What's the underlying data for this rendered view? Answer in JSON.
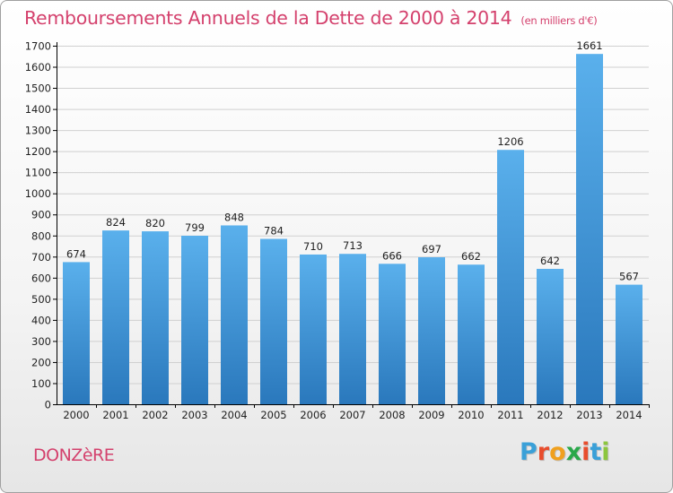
{
  "header": {
    "title": "Remboursements Annuels de la Dette de 2000 à 2014",
    "subtitle": "(en milliers d'€)"
  },
  "footer": {
    "commune": "DONZèRE"
  },
  "logo": {
    "text": "Proxiti",
    "letter_colors": [
      "#3aa0d8",
      "#e84d2d",
      "#f0a01e",
      "#2aa84a",
      "#e84d2d",
      "#3aa0d8",
      "#8cc63e"
    ]
  },
  "colors": {
    "bar_top": "#5ab0ec",
    "bar_bottom": "#2a78bc",
    "grid": "#d0d0d0",
    "accent": "#d4416d"
  },
  "chart_data": {
    "type": "bar",
    "title": "Remboursements Annuels de la Dette de 2000 à 2014",
    "subtitle": "(en milliers d'€)",
    "xlabel": "",
    "ylabel": "",
    "categories": [
      "2000",
      "2001",
      "2002",
      "2003",
      "2004",
      "2005",
      "2006",
      "2007",
      "2008",
      "2009",
      "2010",
      "2011",
      "2012",
      "2013",
      "2014"
    ],
    "values": [
      674,
      824,
      820,
      799,
      848,
      784,
      710,
      713,
      666,
      697,
      662,
      1206,
      642,
      1661,
      567
    ],
    "ylim": [
      0,
      1700
    ],
    "yticks": [
      0,
      100,
      200,
      300,
      400,
      500,
      600,
      700,
      800,
      900,
      1000,
      1100,
      1200,
      1300,
      1400,
      1500,
      1600,
      1700
    ],
    "grid": true,
    "legend": "none"
  }
}
